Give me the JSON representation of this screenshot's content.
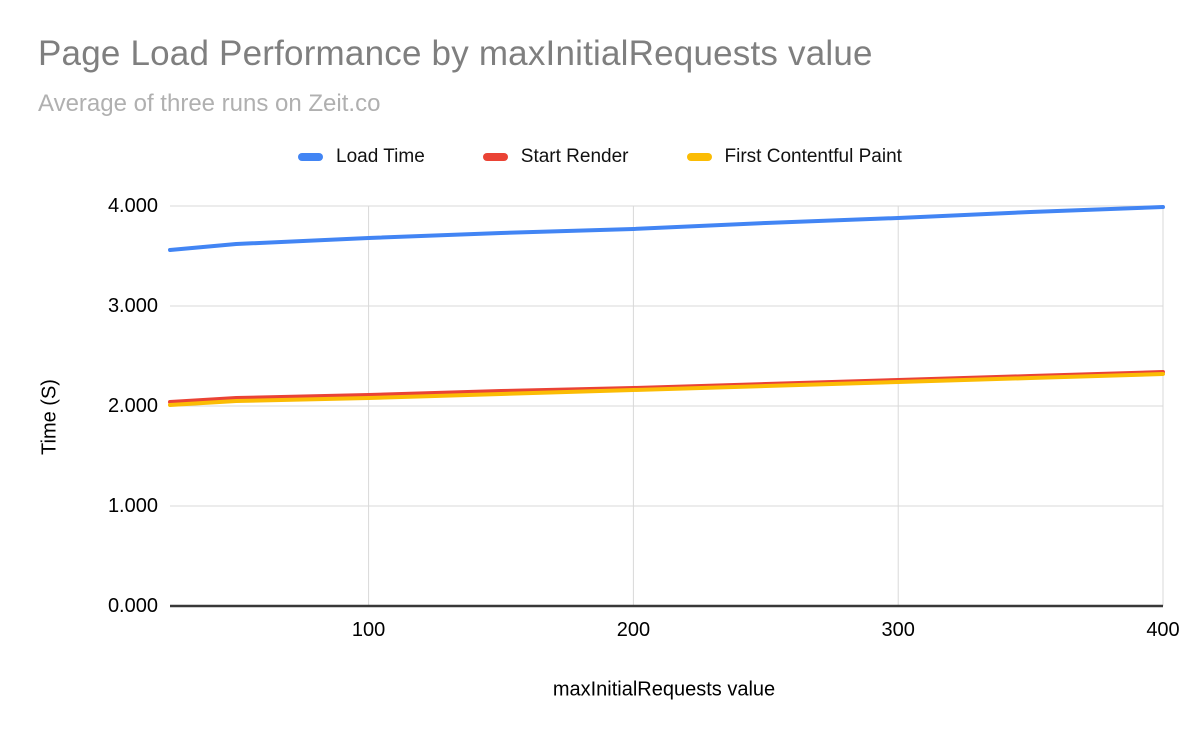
{
  "header": {
    "title": "Page Load Performance by maxInitialRequests value",
    "subtitle": "Average of three runs on Zeit.co"
  },
  "chart_data": {
    "type": "line",
    "title": "Page Load Performance by maxInitialRequests value",
    "subtitle": "Average of three runs on Zeit.co",
    "xlabel": "maxInitialRequests value",
    "ylabel": "Time (S)",
    "xlim": [
      25,
      400
    ],
    "ylim": [
      0,
      4
    ],
    "xticks": [
      100,
      200,
      300,
      400
    ],
    "yticks": [
      "0.000",
      "1.000",
      "2.000",
      "3.000",
      "4.000"
    ],
    "grid": true,
    "legend_position": "top",
    "x": [
      25,
      50,
      100,
      150,
      200,
      250,
      300,
      350,
      400
    ],
    "series": [
      {
        "name": "Load Time",
        "color": "#4285f4",
        "values": [
          3.56,
          3.62,
          3.68,
          3.73,
          3.77,
          3.83,
          3.88,
          3.94,
          3.99
        ]
      },
      {
        "name": "Start Render",
        "color": "#ea4335",
        "values": [
          2.04,
          2.08,
          2.11,
          2.15,
          2.18,
          2.22,
          2.26,
          2.3,
          2.34
        ]
      },
      {
        "name": "First Contentful Paint",
        "color": "#fbbc04",
        "values": [
          2.01,
          2.05,
          2.08,
          2.12,
          2.16,
          2.2,
          2.24,
          2.28,
          2.32
        ]
      }
    ],
    "colors": {
      "grid": "#d9d9d9",
      "axis": "#383838",
      "tick_text": "#000000",
      "title": "#7f7f7f",
      "subtitle": "#b0b0b0",
      "background": "#ffffff"
    }
  }
}
